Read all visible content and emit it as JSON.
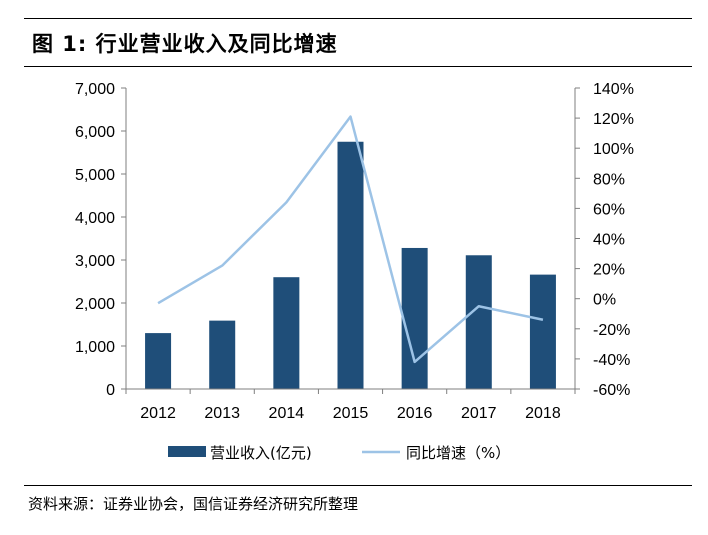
{
  "figure": {
    "title": "图 1:  行业营业收入及同比增速",
    "source": "资料来源：证券业协会，国信证券经济研究所整理"
  },
  "colors": {
    "bar": "#1f4e79",
    "line": "#9dc3e6",
    "axis": "#7f7f7f"
  },
  "chart_data": {
    "type": "bar",
    "title": "行业营业收入及同比增速",
    "categories": [
      "2012",
      "2013",
      "2014",
      "2015",
      "2016",
      "2017",
      "2018"
    ],
    "series": [
      {
        "name": "营业收入(亿元)",
        "type": "bar",
        "axis": "left",
        "values": [
          1300,
          1590,
          2600,
          5750,
          3280,
          3110,
          2660
        ]
      },
      {
        "name": "同比增速（%）",
        "type": "line",
        "axis": "right",
        "values": [
          -3,
          22,
          64,
          121,
          -42,
          -5,
          -14
        ]
      }
    ],
    "y_left": {
      "ylim": [
        0,
        7000
      ],
      "ticks": [
        "0",
        "1,000",
        "2,000",
        "3,000",
        "4,000",
        "5,000",
        "6,000",
        "7,000"
      ]
    },
    "y_right": {
      "ylim": [
        -60,
        140
      ],
      "ticks": [
        "-60%",
        "-40%",
        "-20%",
        "0%",
        "20%",
        "40%",
        "60%",
        "80%",
        "100%",
        "120%",
        "140%"
      ]
    },
    "legend": [
      "营业收入(亿元)",
      "同比增速（%）"
    ],
    "legend_position": "bottom",
    "grid": false
  }
}
